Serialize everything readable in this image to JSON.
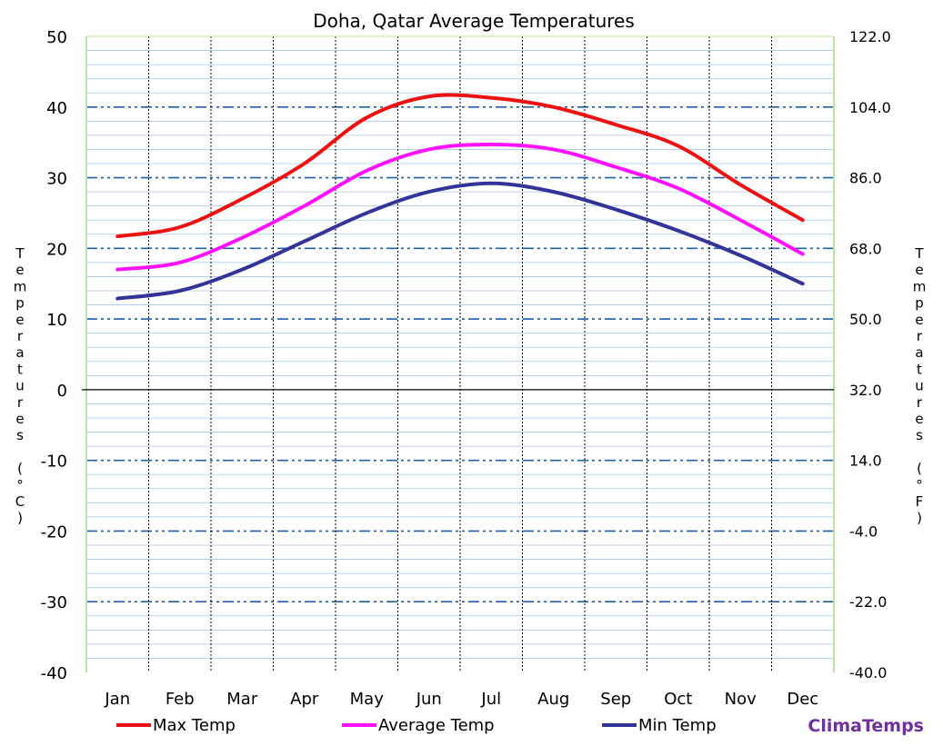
{
  "chart_data": {
    "type": "line",
    "title": "Doha, Qatar Average Temperatures",
    "ylabel_left": "Temperatures (°C)",
    "ylabel_right": "Temperatures (°F)",
    "ylim": [
      -40,
      50
    ],
    "ylim_right": [
      -40,
      122
    ],
    "yticks_left": [
      "50",
      "40",
      "30",
      "20",
      "10",
      "0",
      "-10",
      "-20",
      "-30",
      "-40"
    ],
    "yticks_right": [
      "122.0",
      "104.0",
      "86.0",
      "68.0",
      "50.0",
      "32.0",
      "14.0",
      "-4.0",
      "-22.0",
      "-40.0"
    ],
    "categories": [
      "Jan",
      "Feb",
      "Mar",
      "Apr",
      "May",
      "Jun",
      "Jul",
      "Aug",
      "Sep",
      "Oct",
      "Nov",
      "Dec"
    ],
    "series": [
      {
        "name": "Max Temp",
        "color": "#ee1111",
        "values": [
          21.7,
          23.0,
          27.0,
          32.0,
          38.5,
          41.5,
          41.3,
          40.0,
          37.5,
          34.5,
          29.0,
          24.0
        ]
      },
      {
        "name": "Average Temp",
        "color": "#ff11ff",
        "values": [
          17.0,
          18.0,
          21.5,
          26.0,
          31.0,
          34.0,
          34.7,
          34.0,
          31.5,
          28.5,
          24.0,
          19.2
        ]
      },
      {
        "name": "Min Temp",
        "color": "#333399",
        "values": [
          12.9,
          14.0,
          17.0,
          21.0,
          25.0,
          28.0,
          29.2,
          28.0,
          25.5,
          22.5,
          19.0,
          15.0
        ]
      }
    ],
    "grid": true,
    "legend_position": "bottom"
  },
  "branding": {
    "text": "ClimaTemps",
    "color": "#7030a0"
  }
}
